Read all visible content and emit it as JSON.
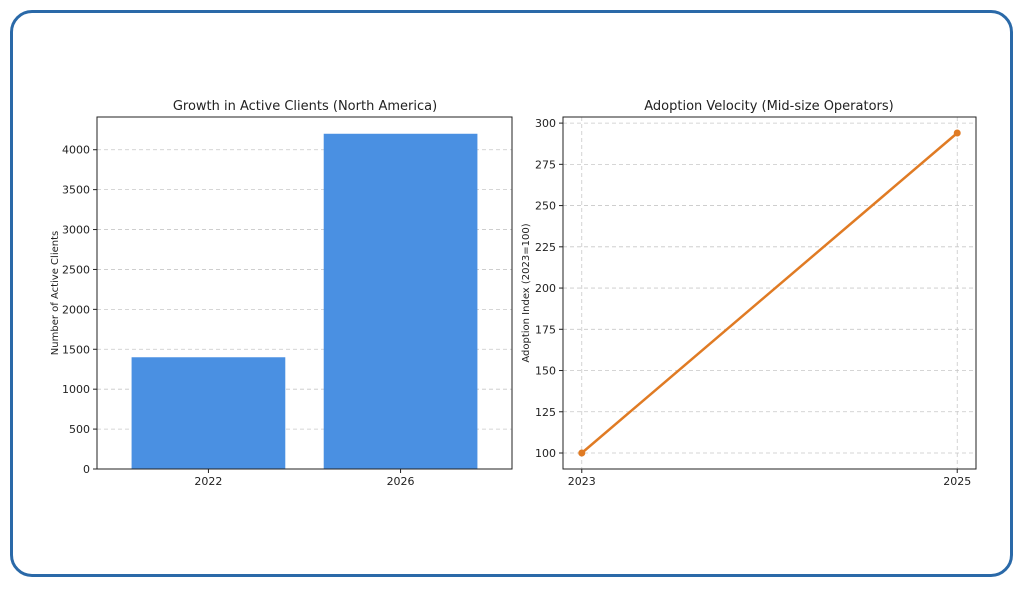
{
  "chart_data": [
    {
      "type": "bar",
      "title": "Growth in Active Clients (North America)",
      "xlabel": "",
      "ylabel": "Number of Active Clients",
      "categories": [
        "2022",
        "2026"
      ],
      "values": [
        1400,
        4200
      ],
      "ylim": [
        0,
        4410
      ],
      "yticks": [
        0,
        500,
        1000,
        1500,
        2000,
        2500,
        3000,
        3500,
        4000
      ],
      "grid": "y",
      "color": "#4a90e2"
    },
    {
      "type": "line",
      "title": "Adoption Velocity (Mid-size Operators)",
      "xlabel": "",
      "ylabel": "Adoption Index (2023=100)",
      "x": [
        "2023",
        "2025"
      ],
      "values": [
        100,
        294
      ],
      "ylim": [
        90.3,
        303.7
      ],
      "yticks": [
        100,
        125,
        150,
        175,
        200,
        225,
        250,
        275,
        300
      ],
      "grid": "both",
      "color": "#e07b24"
    }
  ]
}
